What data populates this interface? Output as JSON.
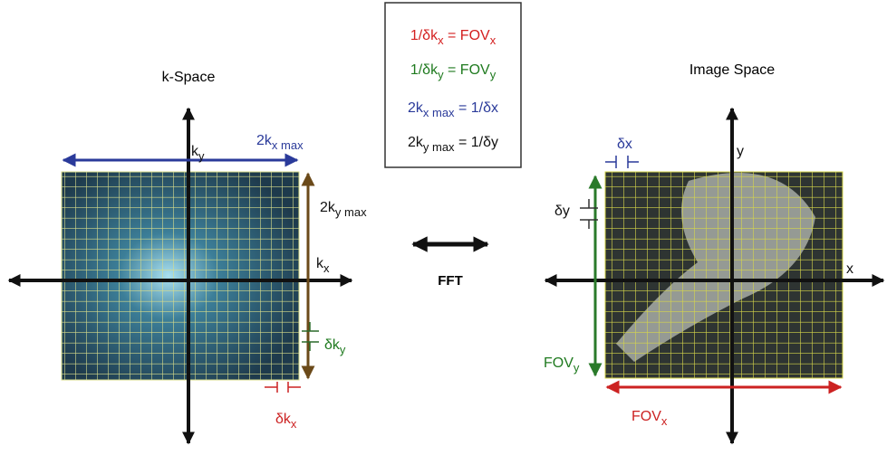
{
  "left_title": "k-Space",
  "right_title": "Image Space",
  "center_label": "FFT",
  "box": [
    [
      {
        "t": "1/δk"
      },
      {
        "sub": "x"
      },
      {
        "t": " = FOV"
      },
      {
        "sub": "x"
      }
    ],
    [
      {
        "t": "1/δk"
      },
      {
        "sub": "y"
      },
      {
        "t": " = FOV"
      },
      {
        "sub": "y"
      }
    ],
    [
      {
        "t": "2k"
      },
      {
        "sub": "x max"
      },
      {
        "t": " = 1/δx"
      }
    ],
    [
      {
        "t": "2k"
      },
      {
        "sub": "y max"
      },
      {
        "t": " = 1/δy"
      }
    ]
  ],
  "left_labels": {
    "kx2": [
      {
        "t": "2k"
      },
      {
        "sub": "x max"
      }
    ],
    "ky": [
      {
        "t": "k"
      },
      {
        "sub": "y"
      }
    ],
    "ky2": [
      {
        "t": "2k"
      },
      {
        "sub": "y max"
      }
    ],
    "kx": [
      {
        "t": "k"
      },
      {
        "sub": "x"
      }
    ],
    "dky": [
      {
        "t": "δk"
      },
      {
        "sub": "y"
      }
    ],
    "dkx": [
      {
        "t": "δk"
      },
      {
        "sub": "x"
      }
    ]
  },
  "right_labels": {
    "dx": [
      {
        "t": "δx"
      }
    ],
    "y": [
      {
        "t": "y"
      }
    ],
    "dy": [
      {
        "t": "δy"
      }
    ],
    "x": [
      {
        "t": "x"
      }
    ],
    "fovy": [
      {
        "t": "FOV"
      },
      {
        "sub": "y"
      }
    ],
    "fovx": [
      {
        "t": "FOV"
      },
      {
        "sub": "x"
      }
    ]
  }
}
